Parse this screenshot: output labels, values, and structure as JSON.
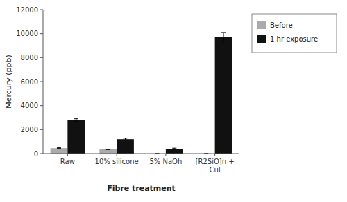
{
  "chart_data": {
    "type": "bar",
    "categories": [
      "Raw",
      "10% silicone",
      "5% NaOh",
      "[R2SiO]n +\nCuI"
    ],
    "series": [
      {
        "name": "Before",
        "color": "#aaaaaa",
        "values": [
          450,
          350,
          0,
          0
        ],
        "errors": [
          30,
          25,
          0,
          0
        ]
      },
      {
        "name": "1 hr exposure",
        "color": "#111111",
        "values": [
          2800,
          1200,
          400,
          9700
        ],
        "errors": [
          100,
          80,
          50,
          400
        ]
      }
    ],
    "xlabel": "Fibre treatment",
    "ylabel": "Mercury (ppb)",
    "ylim": [
      0,
      12000
    ],
    "yticks": [
      0,
      2000,
      4000,
      6000,
      8000,
      10000,
      12000
    ],
    "grid": false,
    "legend": "right"
  }
}
